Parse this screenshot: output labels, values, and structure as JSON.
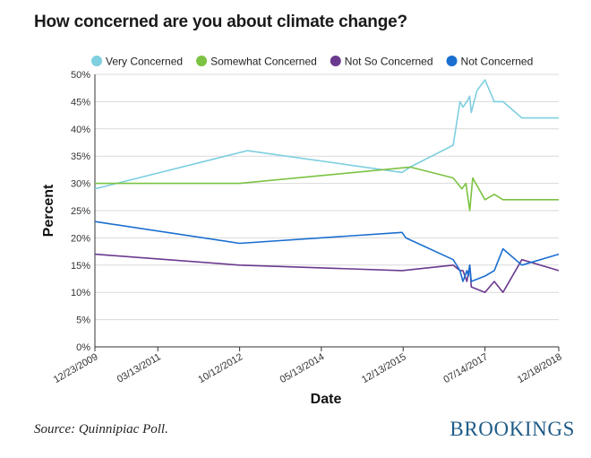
{
  "title": "How concerned are you about climate change?",
  "source": "Source: Quinnipiac Poll.",
  "brand": "BROOKINGS",
  "chart_data": {
    "type": "line",
    "xlabel": "Date",
    "ylabel": "Percent",
    "ylim": [
      0,
      50
    ],
    "yticks": [
      "0%",
      "5%",
      "10%",
      "15%",
      "20%",
      "25%",
      "30%",
      "35%",
      "40%",
      "45%",
      "50%"
    ],
    "xlim": [
      "2009-12-23",
      "2018-12-18"
    ],
    "xticks": [
      {
        "date": "2009-12-23",
        "label": "12/23/2009"
      },
      {
        "date": "2011-03-13",
        "label": "03/13/2011"
      },
      {
        "date": "2012-10-12",
        "label": "10/12/2012"
      },
      {
        "date": "2014-05-13",
        "label": "05/13/2014"
      },
      {
        "date": "2015-12-13",
        "label": "12/13/2015"
      },
      {
        "date": "2017-07-14",
        "label": "07/14/2017"
      },
      {
        "date": "2018-12-18",
        "label": "12/18/2018"
      }
    ],
    "legend_position": "top",
    "grid": "horizontal",
    "series": [
      {
        "name": "Very Concerned",
        "color": "#7ecfe0",
        "points": [
          [
            "2009-12-23",
            29
          ],
          [
            "2012-12-05",
            36
          ],
          [
            "2015-12-05",
            32
          ],
          [
            "2016-02-01",
            33
          ],
          [
            "2016-12-01",
            37
          ],
          [
            "2017-01-18",
            45
          ],
          [
            "2017-02-08",
            44
          ],
          [
            "2017-03-08",
            45
          ],
          [
            "2017-03-28",
            46
          ],
          [
            "2017-04-08",
            43
          ],
          [
            "2017-05-18",
            47
          ],
          [
            "2017-07-14",
            49
          ],
          [
            "2017-09-18",
            45
          ],
          [
            "2017-11-18",
            45
          ],
          [
            "2018-04-01",
            42
          ],
          [
            "2018-12-18",
            42
          ]
        ]
      },
      {
        "name": "Somewhat Concerned",
        "color": "#7cc243",
        "points": [
          [
            "2009-12-23",
            30
          ],
          [
            "2012-10-12",
            30
          ],
          [
            "2016-02-01",
            33
          ],
          [
            "2016-12-01",
            31
          ],
          [
            "2017-02-01",
            29
          ],
          [
            "2017-03-01",
            30
          ],
          [
            "2017-03-28",
            25
          ],
          [
            "2017-04-18",
            31
          ],
          [
            "2017-07-14",
            27
          ],
          [
            "2017-09-18",
            28
          ],
          [
            "2017-11-18",
            27
          ],
          [
            "2018-12-18",
            27
          ]
        ]
      },
      {
        "name": "Not So Concerned",
        "color": "#6b3a8f",
        "points": [
          [
            "2009-12-23",
            17
          ],
          [
            "2012-10-12",
            15
          ],
          [
            "2015-12-05",
            14
          ],
          [
            "2016-12-01",
            15
          ],
          [
            "2017-01-18",
            14
          ],
          [
            "2017-02-08",
            14
          ],
          [
            "2017-03-08",
            12
          ],
          [
            "2017-03-28",
            15
          ],
          [
            "2017-04-08",
            11
          ],
          [
            "2017-07-14",
            10
          ],
          [
            "2017-09-18",
            12
          ],
          [
            "2017-11-18",
            10
          ],
          [
            "2018-04-01",
            16
          ],
          [
            "2018-12-18",
            14
          ]
        ]
      },
      {
        "name": "Not Concerned",
        "color": "#1a6ed0",
        "points": [
          [
            "2009-12-23",
            23
          ],
          [
            "2012-10-12",
            19
          ],
          [
            "2015-12-05",
            21
          ],
          [
            "2016-01-01",
            20
          ],
          [
            "2016-12-01",
            16
          ],
          [
            "2017-01-18",
            14
          ],
          [
            "2017-02-08",
            12
          ],
          [
            "2017-03-08",
            14
          ],
          [
            "2017-03-18",
            13
          ],
          [
            "2017-03-28",
            15
          ],
          [
            "2017-04-08",
            12
          ],
          [
            "2017-07-14",
            13
          ],
          [
            "2017-09-18",
            14
          ],
          [
            "2017-11-18",
            18
          ],
          [
            "2018-04-01",
            15
          ],
          [
            "2018-12-18",
            17
          ]
        ]
      }
    ]
  }
}
